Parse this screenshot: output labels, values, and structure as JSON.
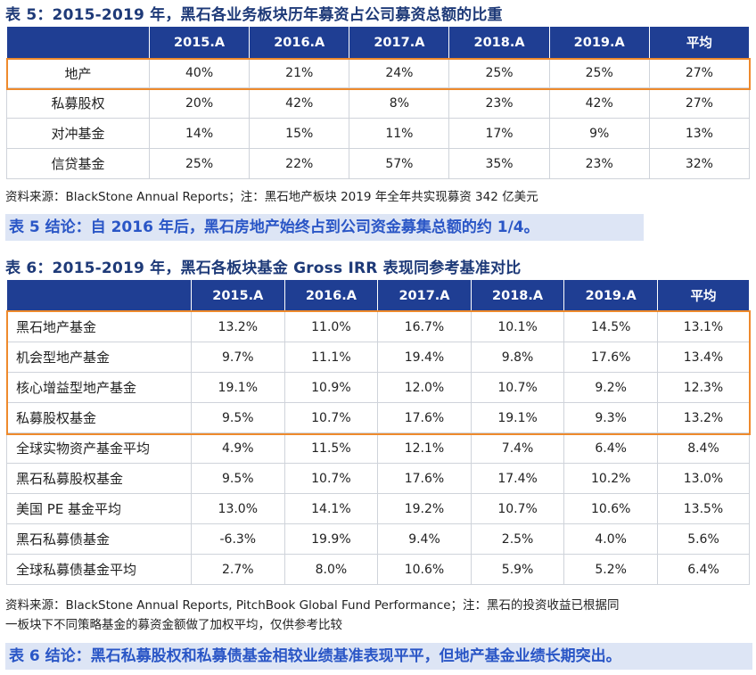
{
  "table5": {
    "title": "表 5：2015-2019 年，黑石各业务板块历年募资占公司募资总额的比重",
    "headers": [
      "",
      "2015.A",
      "2016.A",
      "2017.A",
      "2018.A",
      "2019.A",
      "平均"
    ],
    "rows": [
      {
        "label": "地产",
        "values": [
          "40%",
          "21%",
          "24%",
          "25%",
          "25%",
          "27%"
        ]
      },
      {
        "label": "私募股权",
        "values": [
          "20%",
          "42%",
          "8%",
          "23%",
          "42%",
          "27%"
        ]
      },
      {
        "label": "对冲基金",
        "values": [
          "14%",
          "15%",
          "11%",
          "17%",
          "9%",
          "13%"
        ]
      },
      {
        "label": "信贷基金",
        "values": [
          "25%",
          "22%",
          "57%",
          "35%",
          "23%",
          "32%"
        ]
      }
    ],
    "source": "资料来源：BlackStone Annual Reports；注：黑石地产板块 2019 年全年共实现募资 342 亿美元",
    "conclusion": "表 5 结论：自 2016 年后，黑石房地产始终占到公司资金募集总额的约 1/4。"
  },
  "table6": {
    "title": "表 6：2015-2019 年，黑石各板块基金 Gross IRR 表现同参考基准对比",
    "headers": [
      "",
      "2015.A",
      "2016.A",
      "2017.A",
      "2018.A",
      "2019.A",
      "平均"
    ],
    "rows": [
      {
        "label": "黑石地产基金",
        "values": [
          "13.2%",
          "11.0%",
          "16.7%",
          "10.1%",
          "14.5%",
          "13.1%"
        ]
      },
      {
        "label": "机会型地产基金",
        "values": [
          "9.7%",
          "11.1%",
          "19.4%",
          "9.8%",
          "17.6%",
          "13.4%"
        ]
      },
      {
        "label": "核心增益型地产基金",
        "values": [
          "19.1%",
          "10.9%",
          "12.0%",
          "10.7%",
          "9.2%",
          "12.3%"
        ]
      },
      {
        "label": "私募股权基金",
        "values": [
          "9.5%",
          "10.7%",
          "17.6%",
          "19.1%",
          "9.3%",
          "13.2%"
        ]
      },
      {
        "label": "全球实物资产基金平均",
        "values": [
          "4.9%",
          "11.5%",
          "12.1%",
          "7.4%",
          "6.4%",
          "8.4%"
        ]
      },
      {
        "label": "黑石私募股权基金",
        "values": [
          "9.5%",
          "10.7%",
          "17.6%",
          "17.4%",
          "10.2%",
          "13.0%"
        ]
      },
      {
        "label": "美国 PE 基金平均",
        "values": [
          "13.0%",
          "14.1%",
          "19.2%",
          "10.7%",
          "10.6%",
          "13.5%"
        ]
      },
      {
        "label": "黑石私募债基金",
        "values": [
          "-6.3%",
          "19.9%",
          "9.4%",
          "2.5%",
          "4.0%",
          "5.6%"
        ]
      },
      {
        "label": "全球私募债基金平均",
        "values": [
          "2.7%",
          "8.0%",
          "10.6%",
          "5.9%",
          "5.2%",
          "6.4%"
        ]
      }
    ],
    "source_line1": "资料来源：BlackStone Annual Reports, PitchBook Global Fund Performance；注：黑石的投资收益已根据同",
    "source_line2": "一板块下不同策略基金的募资金额做了加权平均，仅供参考比较",
    "conclusion": "表 6 结论：黑石私募股权和私募债基金相较业绩基准表现平平，但地产基金业绩长期突出。"
  }
}
